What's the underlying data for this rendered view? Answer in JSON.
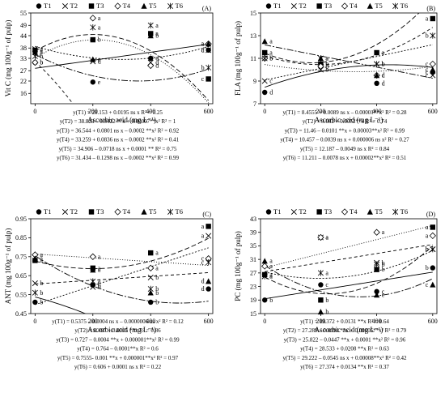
{
  "chart_data": [
    {
      "type": "scatter",
      "panel_label": "(A)",
      "ylabel": "Vit C (mg 100g⁻¹ of pulp)",
      "xlabel": "Ascorbic acid (mg L⁻¹)",
      "x": [
        0,
        200,
        400,
        600
      ],
      "xticks": [
        "0",
        "200",
        "400",
        "600"
      ],
      "ylim": [
        11,
        55
      ],
      "yticks": [
        16,
        22,
        27,
        33,
        38,
        44,
        49,
        55
      ],
      "series": [
        {
          "name": "T1",
          "values": [
            31.0,
            21.5,
            33.0,
            37.0
          ],
          "fit": [
            28.153,
            0.0195,
            0
          ],
          "letters": [
            "b",
            "e",
            "d",
            "d"
          ]
        },
        {
          "name": "T2",
          "values": [
            37.5,
            31.5,
            31.0,
            37.0
          ],
          "fit": [
            38.823,
            -0.0422,
            7e-05
          ],
          "letters": [
            "a",
            "d",
            "d",
            "c"
          ]
        },
        {
          "name": "T3",
          "values": [
            37.0,
            42.0,
            45.0,
            23.0
          ],
          "fit": [
            36.544,
            0.0801,
            -0.0002
          ],
          "letters": [
            "a",
            "b",
            "a",
            "c"
          ]
        },
        {
          "name": "T4",
          "values": [
            31.0,
            52.5,
            29.5,
            40.0
          ],
          "fit": [
            33.259,
            0.0836,
            -0.0002
          ],
          "letters": [
            "b",
            "a",
            "d",
            "a"
          ]
        },
        {
          "name": "T5",
          "values": [
            36.0,
            32.5,
            44.0,
            40.0
          ],
          "fit": [
            34.906,
            -0.0718,
            0.0001
          ],
          "letters": [
            "a",
            "c",
            "b",
            "a"
          ]
        },
        {
          "name": "T6",
          "values": [
            34.0,
            48.0,
            49.0,
            28.5
          ],
          "fit": [
            31.434,
            -0.1298,
            -0.0002
          ],
          "letters": [
            "b",
            "a",
            "a",
            "b"
          ]
        }
      ],
      "equations": [
        "y(T1) = 28.153 + 0.0195 ns x R² = 0.25",
        "y(T2) = 38.823 – 0.0422 **x + 0.00007**x² R² = 1",
        "y(T3) = 36.544 + 0.0801 ns x – 0.0002 **x² R² = 0.92",
        "y(T4) = 33.259 + 0.0836 ns x – 0.0002 **x² R² = 0.41",
        "y(T5) = 34.906 – 0.0718 ns x + 0.0001 ** R² = 0.75",
        "y(T6) = 31.434 – 0.1298 ns x – 0.0002 **x² R² = 0.99"
      ]
    },
    {
      "type": "scatter",
      "panel_label": "(B)",
      "ylabel": "FLA (mg 100g⁻¹ of pulp)",
      "xlabel": "Ascorbic acid (mg L⁻¹)",
      "x": [
        0,
        200,
        400,
        600
      ],
      "xticks": [
        "0",
        "200",
        "400",
        "600"
      ],
      "ylim": [
        7,
        15
      ],
      "yticks": [
        7,
        9,
        11,
        13,
        15
      ],
      "series": [
        {
          "name": "T1",
          "values": [
            8.0,
            10.5,
            8.8,
            9.8
          ],
          "fit": [
            8.4555,
            0.0089,
            -1e-05
          ],
          "letters": [
            "d",
            "b",
            "d",
            "c"
          ]
        },
        {
          "name": "T2",
          "values": [
            9.0,
            10.0,
            10.5,
            9.5
          ],
          "fit": [
            9.082,
            0.0052,
            0
          ],
          "letters": [
            "c",
            "b",
            "b",
            "c"
          ]
        },
        {
          "name": "T3",
          "values": [
            11.5,
            10.5,
            11.5,
            14.5
          ],
          "fit": [
            11.46,
            -0.0101,
            3e-05
          ],
          "letters": [
            "a",
            "b",
            "a",
            "a"
          ]
        },
        {
          "name": "T4",
          "values": [
            11.0,
            10.3,
            9.5,
            10.5
          ],
          "fit": [
            10.457,
            -0.0039,
            6e-06
          ],
          "letters": [
            "b",
            "b",
            "d",
            "c"
          ]
        },
        {
          "name": "T5",
          "values": [
            12.5,
            11.0,
            9.5,
            10.0
          ],
          "fit": [
            12.187,
            -0.0049,
            0
          ],
          "letters": [
            "a",
            "a",
            "c",
            "c"
          ]
        },
        {
          "name": "T6",
          "values": [
            11.0,
            11.0,
            10.5,
            13.0
          ],
          "fit": [
            11.211,
            -0.0078,
            2e-05
          ],
          "letters": [
            "b",
            "a",
            "b",
            "b"
          ]
        }
      ],
      "equations": [
        "y(T1) = 8.4555 + 0.0089 ns x – 0.00001**x² R² = 0.28",
        "y(T2) = 9.082 + 0.0052**x R² = 0.74",
        "y(T3) = 11.46 – 0.0101 **x + 0.00003**x² R² = 0.99",
        "y(T4) = 10.457 – 0.0039 ns x + 0.000006 ns x² R² = 0.27",
        "y(T5) = 12.187 – 0.0049 ns x R² = 0.84",
        "y(T6) = 11.211 – 0.0078 ns x + 0.00002**x² R² = 0.51"
      ]
    },
    {
      "type": "scatter",
      "panel_label": "(C)",
      "ylabel": "ANT (mg 100g⁻¹ of pulp)",
      "xlabel": "Ascorbic acid (mg L⁻¹)",
      "x": [
        0,
        200,
        400,
        600
      ],
      "xticks": [
        "0",
        "200",
        "400",
        "600"
      ],
      "ylim": [
        0.45,
        0.95
      ],
      "yticks": [
        0.45,
        0.55,
        0.65,
        0.75,
        0.85,
        0.95
      ],
      "series": [
        {
          "name": "T1",
          "values": [
            0.51,
            0.6,
            0.51,
            0.58
          ],
          "fit": [
            0.5375,
            -0.0004,
            -6e-07
          ],
          "letters": [
            "b",
            "b",
            "b",
            "d"
          ]
        },
        {
          "name": "T2",
          "values": [
            0.61,
            0.59,
            0.64,
            0.86
          ],
          "fit": [
            0.497,
            0.0005,
            0
          ],
          "letters": [
            "b",
            "b",
            "b",
            "a"
          ]
        },
        {
          "name": "T3",
          "values": [
            0.73,
            0.69,
            0.77,
            0.91
          ],
          "fit": [
            0.727,
            -0.0004,
            1e-06
          ],
          "letters": [
            "a",
            "a",
            "a",
            "a"
          ]
        },
        {
          "name": "T4",
          "values": [
            0.76,
            0.75,
            0.69,
            0.74
          ],
          "fit": [
            0.764,
            -0.0001,
            0
          ],
          "letters": [
            "a",
            "a",
            "a",
            "c"
          ]
        },
        {
          "name": "T5",
          "values": [
            0.74,
            0.68,
            0.56,
            0.62
          ],
          "fit": [
            0.7555,
            -0.001,
            1e-06
          ],
          "letters": [
            "a",
            "a",
            "b",
            "d"
          ]
        },
        {
          "name": "T6",
          "values": [
            0.56,
            0.62,
            0.58,
            0.72
          ],
          "fit": [
            0.606,
            0.0001,
            0
          ],
          "letters": [
            "b",
            "a",
            "b",
            "c"
          ]
        }
      ],
      "equations": [
        "y(T1) = 0.5375 – 0.0004 ns x – 0.0000006 ns x² R² = 0.12",
        "y(T2) = 0.497 + 0.0005 **x R² = 0.86",
        "y(T3) = 0.727 – 0.0004 **x + 0.000001**x² R² = 0.99",
        "y(T4) = 0.764 – 0.0001**x R² = 0.6",
        "y(T5) = 0.7555- 0.001 **x + 0.000001**x² R² = 0.97",
        "y(T6) = 0.606 + 0.0001 ns x R² = 0.22"
      ]
    },
    {
      "type": "scatter",
      "panel_label": "(D)",
      "ylabel": "PC (mg 100g⁻¹ of pulp)",
      "xlabel": "Ascorbic acid (mg L⁻¹)",
      "x": [
        0,
        200,
        400,
        600
      ],
      "xticks": [
        "0",
        "200",
        "400",
        "600"
      ],
      "ylim": [
        15,
        43
      ],
      "yticks": [
        15,
        19,
        23,
        27,
        31,
        35,
        39,
        43
      ],
      "series": [
        {
          "name": "T1",
          "values": [
            19.0,
            23.5,
            21.5,
            28.5
          ],
          "fit": [
            19.372,
            0.0131,
            0
          ],
          "letters": [
            "b",
            "c",
            "c",
            "b"
          ]
        },
        {
          "name": "T2",
          "values": [
            26.0,
            37.5,
            30.0,
            34.0
          ],
          "fit": [
            27.289,
            -0.0194,
            5e-05
          ],
          "letters": [
            "a",
            "a",
            "b",
            "b"
          ]
        },
        {
          "name": "T3",
          "values": [
            26.5,
            19.0,
            28.0,
            40.5
          ],
          "fit": [
            25.822,
            -0.0447,
            0.0001
          ],
          "letters": [
            "a",
            "b",
            "b",
            "a"
          ]
        },
        {
          "name": "T4",
          "values": [
            29.0,
            37.5,
            39.0,
            38.0
          ],
          "fit": [
            28.533,
            0.0208,
            0
          ],
          "letters": [
            "a",
            "a",
            "a",
            "a"
          ]
        },
        {
          "name": "T5",
          "values": [
            30.5,
            15.5,
            20.5,
            23.5
          ],
          "fit": [
            29.222,
            -0.0545,
            8e-05
          ],
          "letters": [
            "a",
            "b",
            "c",
            "c"
          ]
        },
        {
          "name": "T6",
          "values": [
            26.0,
            27.0,
            29.5,
            34.0
          ],
          "fit": [
            27.374,
            0.0134,
            0
          ],
          "letters": [
            "a",
            "a",
            "b",
            "b"
          ]
        }
      ],
      "equations": [
        "y(T1) = 19.372 + 0.0131 **x R² = 0.64",
        "y(T2) = 27.289 – 0.0194 **x + 0.00005**x² R² = 0.79",
        "y(T3) = 25.822 – 0.0447 **x + 0.0001 **x² R² = 0.96",
        "y(T4) = 28.533 + 0.0208 **x R² = 0.63",
        "y(T5) = 29.222 – 0.0545 ns x + 0.00008**x² R² = 0.42",
        "y(T6) = 27.374 + 0.0134 **x R² = 0.37"
      ]
    }
  ],
  "series_styles": {
    "T1": {
      "marker": "circle",
      "symbol": "●",
      "dash": "none"
    },
    "T2": {
      "marker": "cross",
      "symbol": "✕",
      "dash": "2,2"
    },
    "T3": {
      "marker": "square",
      "symbol": "■",
      "dash": "6,3"
    },
    "T4": {
      "marker": "diamond",
      "symbol": "◇",
      "dash": "1,2"
    },
    "T5": {
      "marker": "triangle",
      "symbol": "▲",
      "dash": "8,2,2,2"
    },
    "T6": {
      "marker": "star",
      "symbol": "✱",
      "dash": "4,3"
    }
  },
  "colors": {
    "ink": "#000000",
    "background": "#ffffff"
  }
}
